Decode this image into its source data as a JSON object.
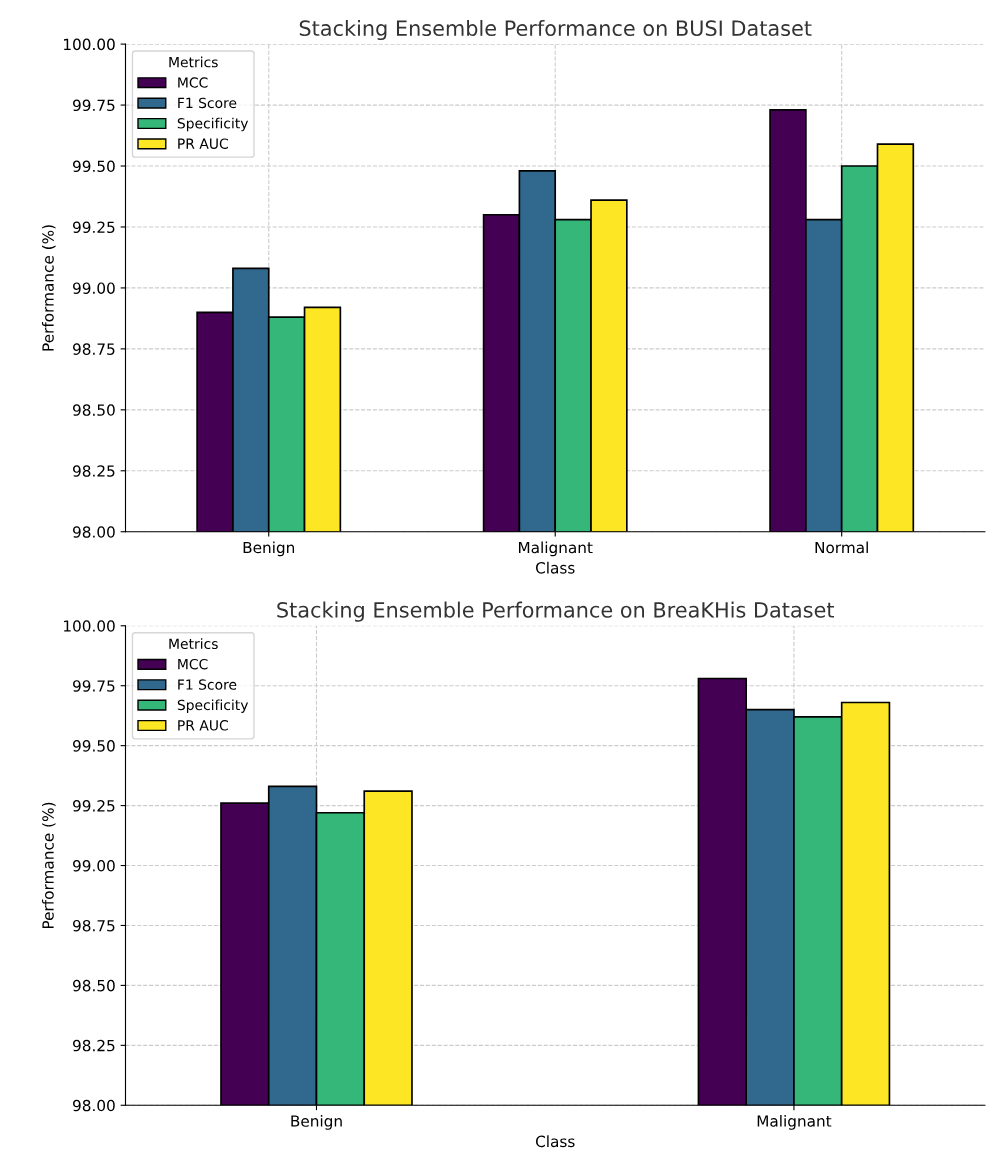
{
  "chart_data": [
    {
      "type": "bar",
      "title": "Stacking Ensemble Performance on BUSI Dataset",
      "xlabel": "Class",
      "ylabel": "Performance (%)",
      "legend_title": "Metrics",
      "legend": "top left",
      "grid": true,
      "categories": [
        "Benign",
        "Malignant",
        "Normal"
      ],
      "series": [
        {
          "name": "MCC",
          "color": "#440154",
          "values": [
            98.9,
            99.3,
            99.73
          ]
        },
        {
          "name": "F1 Score",
          "color": "#31688e",
          "values": [
            99.08,
            99.48,
            99.28
          ]
        },
        {
          "name": "Specificity",
          "color": "#35b779",
          "values": [
            98.88,
            99.28,
            99.5
          ]
        },
        {
          "name": "PR AUC",
          "color": "#fde725",
          "values": [
            98.92,
            99.36,
            99.59
          ]
        }
      ],
      "ylim": [
        98.0,
        100.0
      ],
      "yticks": [
        {
          "value": 98.0,
          "label": "98.00"
        },
        {
          "value": 98.25,
          "label": "98.25"
        },
        {
          "value": 98.5,
          "label": "98.50"
        },
        {
          "value": 98.75,
          "label": "98.75"
        },
        {
          "value": 99.0,
          "label": "99.00"
        },
        {
          "value": 99.25,
          "label": "99.25"
        },
        {
          "value": 99.5,
          "label": "99.50"
        },
        {
          "value": 99.75,
          "label": "99.75"
        },
        {
          "value": 100.0,
          "label": "100.00"
        }
      ]
    },
    {
      "type": "bar",
      "title": "Stacking Ensemble Performance on BreaKHis Dataset",
      "xlabel": "Class",
      "ylabel": "Performance (%)",
      "legend_title": "Metrics",
      "legend": "top left",
      "grid": true,
      "categories": [
        "Benign",
        "Malignant"
      ],
      "series": [
        {
          "name": "MCC",
          "color": "#440154",
          "values": [
            99.26,
            99.78
          ]
        },
        {
          "name": "F1 Score",
          "color": "#31688e",
          "values": [
            99.33,
            99.65
          ]
        },
        {
          "name": "Specificity",
          "color": "#35b779",
          "values": [
            99.22,
            99.62
          ]
        },
        {
          "name": "PR AUC",
          "color": "#fde725",
          "values": [
            99.31,
            99.68
          ]
        }
      ],
      "ylim": [
        98.0,
        100.0
      ],
      "yticks": [
        {
          "value": 98.0,
          "label": "98.00"
        },
        {
          "value": 98.25,
          "label": "98.25"
        },
        {
          "value": 98.5,
          "label": "98.50"
        },
        {
          "value": 98.75,
          "label": "98.75"
        },
        {
          "value": 99.0,
          "label": "99.00"
        },
        {
          "value": 99.25,
          "label": "99.25"
        },
        {
          "value": 99.5,
          "label": "99.50"
        },
        {
          "value": 99.75,
          "label": "99.75"
        },
        {
          "value": 100.0,
          "label": "100.00"
        }
      ]
    }
  ]
}
